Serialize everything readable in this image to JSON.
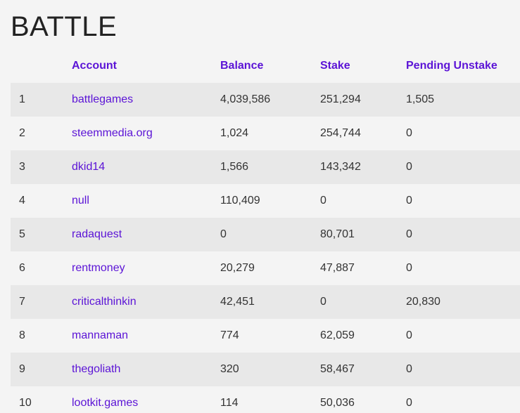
{
  "page": {
    "title": "BATTLE"
  },
  "table": {
    "headers": {
      "rank": "",
      "account": "Account",
      "balance": "Balance",
      "stake": "Stake",
      "pending_unstake": "Pending Unstake"
    },
    "rows": [
      {
        "rank": "1",
        "account": "battlegames",
        "balance": "4,039,586",
        "stake": "251,294",
        "pending_unstake": "1,505"
      },
      {
        "rank": "2",
        "account": "steemmedia.org",
        "balance": "1,024",
        "stake": "254,744",
        "pending_unstake": "0"
      },
      {
        "rank": "3",
        "account": "dkid14",
        "balance": "1,566",
        "stake": "143,342",
        "pending_unstake": "0"
      },
      {
        "rank": "4",
        "account": "null",
        "balance": "110,409",
        "stake": "0",
        "pending_unstake": "0"
      },
      {
        "rank": "5",
        "account": "radaquest",
        "balance": "0",
        "stake": "80,701",
        "pending_unstake": "0"
      },
      {
        "rank": "6",
        "account": "rentmoney",
        "balance": "20,279",
        "stake": "47,887",
        "pending_unstake": "0"
      },
      {
        "rank": "7",
        "account": "criticalthinkin",
        "balance": "42,451",
        "stake": "0",
        "pending_unstake": "20,830"
      },
      {
        "rank": "8",
        "account": "mannaman",
        "balance": "774",
        "stake": "62,059",
        "pending_unstake": "0"
      },
      {
        "rank": "9",
        "account": "thegoliath",
        "balance": "320",
        "stake": "58,467",
        "pending_unstake": "0"
      },
      {
        "rank": "10",
        "account": "lootkit.games",
        "balance": "114",
        "stake": "50,036",
        "pending_unstake": "0"
      }
    ]
  },
  "colors": {
    "link": "#5b13d6",
    "stripe": "#e8e8e8",
    "background": "#f4f4f4",
    "text": "#333333"
  }
}
